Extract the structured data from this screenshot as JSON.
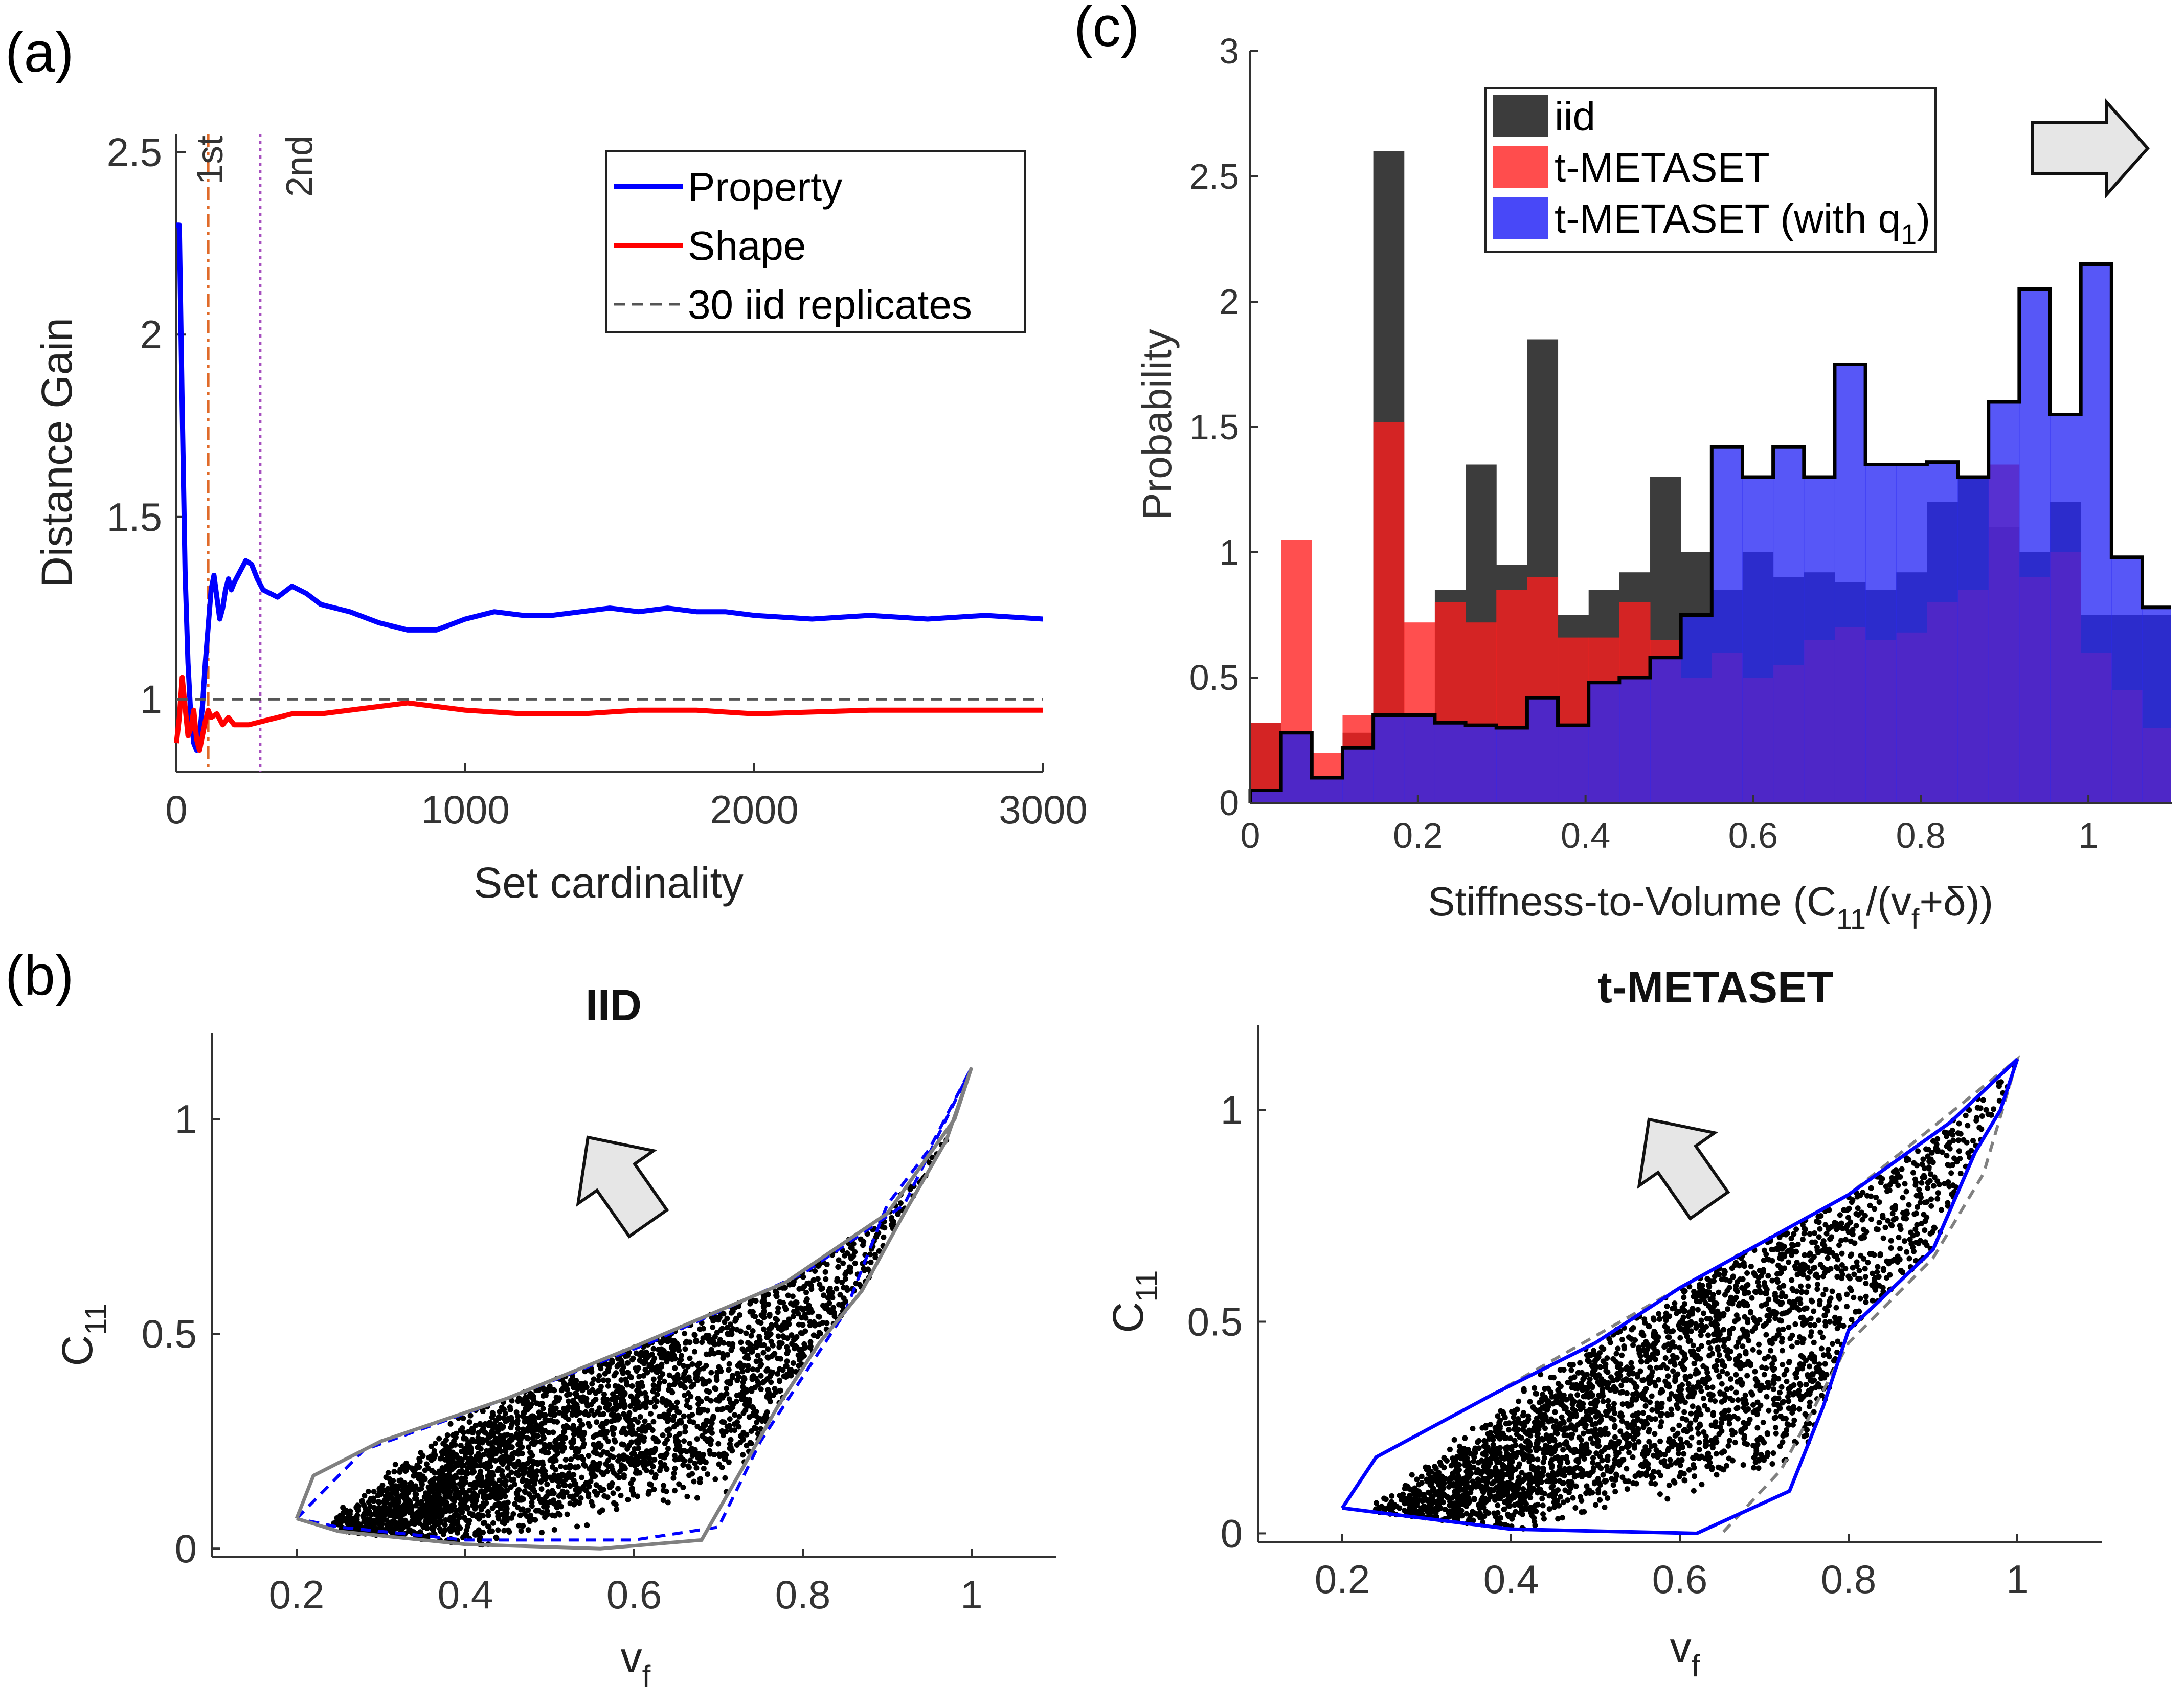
{
  "panel_labels": {
    "a": "(a)",
    "b": "(b)",
    "c": "(c)"
  },
  "chart_data": [
    {
      "id": "a",
      "type": "line",
      "title": "",
      "xlabel": "Set cardinality",
      "ylabel": "Distance Gain",
      "xlim": [
        0,
        3000
      ],
      "ylim": [
        0.8,
        2.55
      ],
      "xticks": [
        0,
        1000,
        2000,
        3000
      ],
      "yticks": [
        1,
        1.5,
        2,
        2.5
      ],
      "series": [
        {
          "name": "Property",
          "color": "#0000ff",
          "x": [
            0,
            10,
            20,
            30,
            40,
            50,
            60,
            70,
            80,
            90,
            100,
            110,
            120,
            130,
            140,
            150,
            160,
            170,
            180,
            190,
            200,
            220,
            240,
            260,
            280,
            300,
            350,
            400,
            450,
            500,
            600,
            700,
            800,
            900,
            1000,
            1100,
            1200,
            1300,
            1400,
            1500,
            1600,
            1700,
            1800,
            1900,
            2000,
            2200,
            2400,
            2600,
            2800,
            3000
          ],
          "y": [
            2.3,
            2.3,
            1.8,
            1.35,
            1.1,
            0.95,
            0.88,
            0.86,
            0.9,
            0.98,
            1.1,
            1.2,
            1.3,
            1.34,
            1.28,
            1.22,
            1.25,
            1.3,
            1.33,
            1.3,
            1.32,
            1.35,
            1.38,
            1.37,
            1.33,
            1.3,
            1.28,
            1.31,
            1.29,
            1.26,
            1.24,
            1.21,
            1.19,
            1.19,
            1.22,
            1.24,
            1.23,
            1.23,
            1.24,
            1.25,
            1.24,
            1.25,
            1.24,
            1.24,
            1.23,
            1.22,
            1.23,
            1.22,
            1.23,
            1.22
          ]
        },
        {
          "name": "Shape",
          "color": "#ff0000",
          "x": [
            0,
            10,
            20,
            30,
            40,
            50,
            60,
            70,
            80,
            90,
            100,
            110,
            120,
            140,
            160,
            180,
            200,
            250,
            300,
            400,
            500,
            600,
            700,
            800,
            900,
            1000,
            1200,
            1400,
            1600,
            1800,
            2000,
            2400,
            2800,
            3000
          ],
          "y": [
            0.88,
            0.95,
            1.06,
            0.98,
            0.9,
            0.92,
            0.97,
            0.89,
            0.86,
            0.9,
            0.94,
            0.97,
            0.95,
            0.96,
            0.93,
            0.95,
            0.93,
            0.93,
            0.94,
            0.96,
            0.96,
            0.97,
            0.98,
            0.99,
            0.98,
            0.97,
            0.96,
            0.96,
            0.97,
            0.97,
            0.96,
            0.97,
            0.97,
            0.97
          ]
        },
        {
          "name": "30 iid replicates",
          "color": "#555555",
          "x": [
            0,
            3000
          ],
          "y": [
            1,
            1
          ]
        }
      ],
      "vlines": [
        {
          "label": "1st",
          "x": 110,
          "color": "#e06b2a"
        },
        {
          "label": "2nd",
          "x": 290,
          "color": "#a64fbf"
        }
      ],
      "legend": [
        "Property",
        "Shape",
        "30 iid replicates"
      ],
      "legend_position": "top-right"
    },
    {
      "id": "b-iid",
      "type": "scatter",
      "title": "IID",
      "xlabel": "v",
      "xlabel_sub": "f",
      "ylabel": "C",
      "ylabel_sub": "11",
      "xlim": [
        0.1,
        1.1
      ],
      "ylim": [
        -0.02,
        1.2
      ],
      "xticks": [
        0.2,
        0.4,
        0.6,
        0.8,
        1
      ],
      "yticks": [
        0,
        0.5,
        1
      ],
      "hull_solid_color": "#808080",
      "hull_dashed_color": "#0000ff",
      "hull_solid": [
        [
          0.2,
          0.07
        ],
        [
          0.22,
          0.17
        ],
        [
          0.3,
          0.25
        ],
        [
          0.45,
          0.35
        ],
        [
          0.6,
          0.47
        ],
        [
          0.78,
          0.62
        ],
        [
          0.9,
          0.78
        ],
        [
          0.98,
          1.0
        ],
        [
          1.0,
          1.12
        ],
        [
          0.97,
          0.95
        ],
        [
          0.92,
          0.78
        ],
        [
          0.87,
          0.6
        ],
        [
          0.82,
          0.48
        ],
        [
          0.77,
          0.33
        ],
        [
          0.68,
          0.02
        ],
        [
          0.56,
          0.0
        ],
        [
          0.4,
          0.01
        ],
        [
          0.25,
          0.04
        ],
        [
          0.2,
          0.07
        ]
      ],
      "hull_dashed": [
        [
          0.2,
          0.07
        ],
        [
          0.28,
          0.23
        ],
        [
          0.45,
          0.35
        ],
        [
          0.62,
          0.48
        ],
        [
          0.8,
          0.64
        ],
        [
          0.92,
          0.8
        ],
        [
          1.0,
          1.12
        ],
        [
          0.95,
          0.93
        ],
        [
          0.9,
          0.8
        ],
        [
          0.85,
          0.55
        ],
        [
          0.75,
          0.25
        ],
        [
          0.7,
          0.05
        ],
        [
          0.6,
          0.02
        ],
        [
          0.4,
          0.02
        ],
        [
          0.25,
          0.05
        ],
        [
          0.2,
          0.07
        ]
      ],
      "points_hull": "iid",
      "num_points": 3000
    },
    {
      "id": "b-tmetaset",
      "type": "scatter",
      "title": "t-METASET",
      "xlabel": "v",
      "xlabel_sub": "f",
      "ylabel": "C",
      "ylabel_sub": "11",
      "xlim": [
        0.1,
        1.1
      ],
      "ylim": [
        -0.02,
        1.2
      ],
      "xticks": [
        0.2,
        0.4,
        0.6,
        0.8,
        1
      ],
      "yticks": [
        0,
        0.5,
        1
      ],
      "hull_solid_color": "#0000ff",
      "hull_dashed_color": "#808080",
      "hull_solid": [
        [
          0.2,
          0.06
        ],
        [
          0.24,
          0.18
        ],
        [
          0.38,
          0.33
        ],
        [
          0.5,
          0.45
        ],
        [
          0.6,
          0.58
        ],
        [
          0.8,
          0.8
        ],
        [
          0.92,
          0.97
        ],
        [
          1.0,
          1.12
        ],
        [
          0.98,
          1.0
        ],
        [
          0.95,
          0.9
        ],
        [
          0.9,
          0.67
        ],
        [
          0.8,
          0.48
        ],
        [
          0.77,
          0.3
        ],
        [
          0.73,
          0.1
        ],
        [
          0.62,
          0.0
        ],
        [
          0.4,
          0.01
        ],
        [
          0.2,
          0.06
        ]
      ],
      "hull_dashed": [
        [
          0.2,
          0.06
        ],
        [
          0.24,
          0.18
        ],
        [
          0.38,
          0.33
        ],
        [
          0.6,
          0.58
        ],
        [
          0.8,
          0.8
        ],
        [
          1.0,
          1.12
        ],
        [
          0.96,
          0.85
        ],
        [
          0.9,
          0.65
        ],
        [
          0.8,
          0.45
        ],
        [
          0.72,
          0.15
        ],
        [
          0.65,
          0.0
        ]
      ],
      "num_points": 3000
    },
    {
      "id": "c",
      "type": "bar",
      "title": "",
      "xlabel": "Stiffness-to-Volume (C",
      "xlabel_sub1": "11",
      "xlabel_mid": "/(v",
      "xlabel_sub2": "f",
      "xlabel_end": "+δ))",
      "ylabel": "Probability",
      "xlim": [
        0,
        1.1
      ],
      "ylim": [
        0,
        3
      ],
      "xticks": [
        0,
        0.2,
        0.4,
        0.6,
        0.8,
        1
      ],
      "yticks": [
        0,
        0.5,
        1,
        1.5,
        2,
        2.5,
        3
      ],
      "bin_width": 0.0367,
      "series": [
        {
          "name": "iid",
          "color": "#3c3c3c",
          "values": [
            0.32,
            0.28,
            0.1,
            0.28,
            2.6,
            0.35,
            0.85,
            1.35,
            0.95,
            1.85,
            0.75,
            0.85,
            0.92,
            1.3,
            1.0,
            0.85,
            1.0,
            0.9,
            0.92,
            0.88,
            0.85,
            0.92,
            1.2,
            1.3,
            1.1,
            1.0,
            1.2,
            0.75,
            0.75,
            0.75
          ]
        },
        {
          "name": "t-METASET",
          "color": "#ff2a2a",
          "values": [
            0.32,
            1.05,
            0.2,
            0.35,
            1.52,
            0.72,
            0.8,
            0.72,
            0.85,
            0.9,
            0.66,
            0.66,
            0.8,
            0.65,
            0.5,
            0.6,
            0.5,
            0.55,
            0.65,
            0.7,
            0.65,
            0.68,
            0.8,
            0.85,
            1.35,
            0.9,
            1.0,
            0.6,
            0.45,
            0.3
          ]
        },
        {
          "name": "t-METASET (with q",
          "sub": "1",
          "close": ")",
          "color": "#3a3af5",
          "values": [
            0.05,
            0.28,
            0.1,
            0.22,
            0.35,
            0.35,
            0.32,
            0.31,
            0.3,
            0.42,
            0.31,
            0.48,
            0.5,
            0.58,
            0.75,
            1.42,
            1.3,
            1.42,
            1.3,
            1.75,
            1.35,
            1.35,
            1.36,
            1.3,
            1.6,
            2.05,
            1.55,
            2.15,
            0.98,
            0.78
          ]
        }
      ],
      "outline_series": "t-METASET (with q1)",
      "legend_position": "top-center"
    }
  ]
}
